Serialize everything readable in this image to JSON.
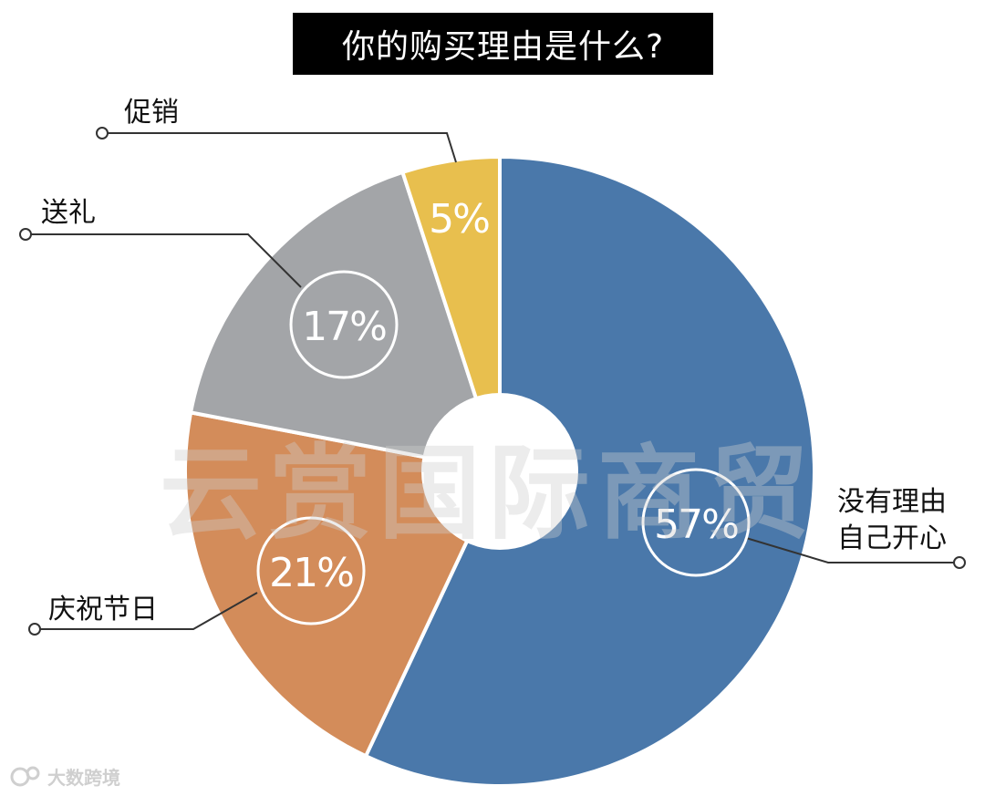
{
  "title": "你的购买理由是什么?",
  "chart_data": {
    "type": "pie",
    "donut": true,
    "slices": [
      {
        "label": "没有理由自己开心",
        "label_lines": [
          "没有理由",
          "自己开心"
        ],
        "value": 57,
        "display": "57%",
        "color": "#4a78aa"
      },
      {
        "label": "庆祝节日",
        "label_lines": [
          "庆祝节日"
        ],
        "value": 21,
        "display": "21%",
        "color": "#d38c5a"
      },
      {
        "label": "送礼",
        "label_lines": [
          "送礼"
        ],
        "value": 17,
        "display": "17%",
        "color": "#a3a5a8"
      },
      {
        "label": "促销",
        "label_lines": [
          "促销"
        ],
        "value": 5,
        "display": "5%",
        "color": "#e8bf4e"
      }
    ]
  },
  "watermark": "云赏国际商贸",
  "credit": "大数跨境"
}
